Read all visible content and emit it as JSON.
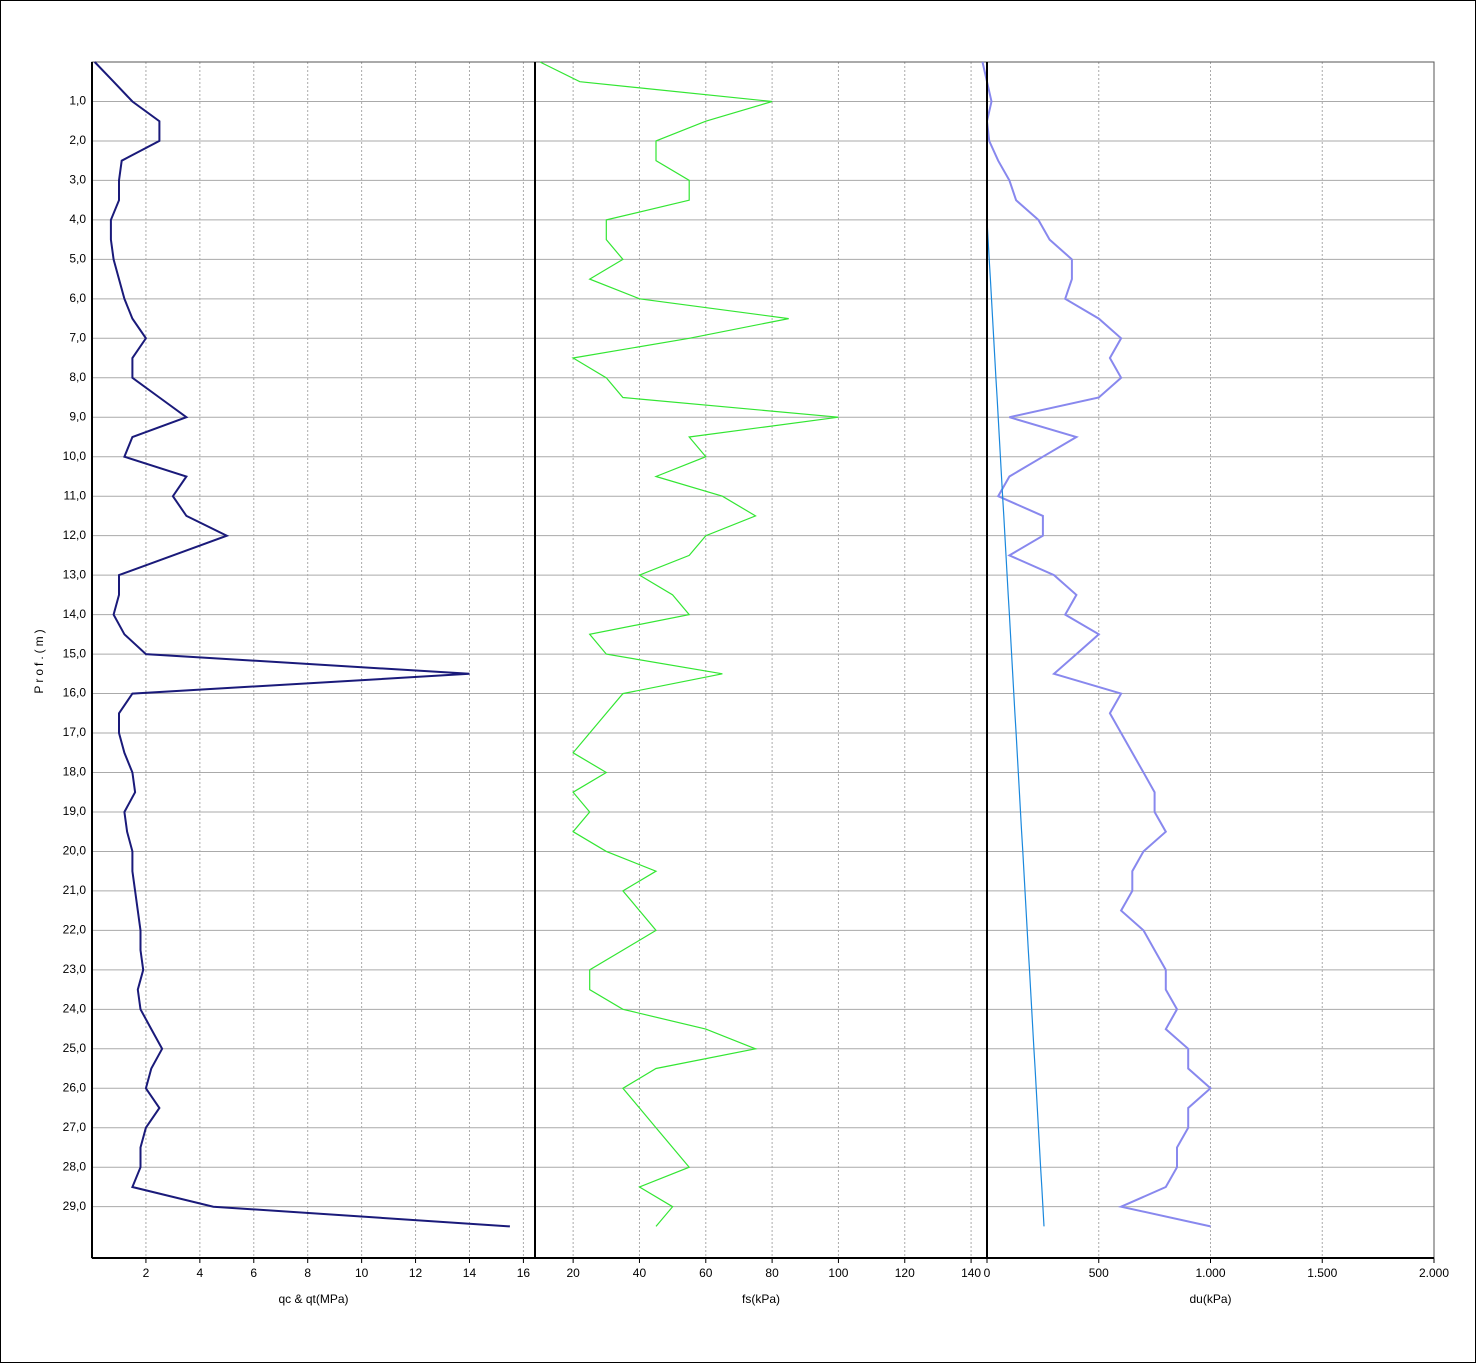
{
  "chart_data": [
    {
      "type": "line",
      "xlabel": "qc & qt(MPa)",
      "ylabel": "Prof.(m)",
      "ylim": [
        0,
        30.3
      ],
      "yticks": [
        {
          "value": 1,
          "label": "1,0"
        },
        {
          "value": 2,
          "label": "2,0"
        },
        {
          "value": 3,
          "label": "3,0"
        },
        {
          "value": 4,
          "label": "4,0"
        },
        {
          "value": 5,
          "label": "5,0"
        },
        {
          "value": 6,
          "label": "6,0"
        },
        {
          "value": 7,
          "label": "7,0"
        },
        {
          "value": 8,
          "label": "8,0"
        },
        {
          "value": 9,
          "label": "9,0"
        },
        {
          "value": 10,
          "label": "10,0"
        },
        {
          "value": 11,
          "label": "11,0"
        },
        {
          "value": 12,
          "label": "12,0"
        },
        {
          "value": 13,
          "label": "13,0"
        },
        {
          "value": 14,
          "label": "14,0"
        },
        {
          "value": 15,
          "label": "15,0"
        },
        {
          "value": 16,
          "label": "16,0"
        },
        {
          "value": 17,
          "label": "17,0"
        },
        {
          "value": 18,
          "label": "18,0"
        },
        {
          "value": 19,
          "label": "19,0"
        },
        {
          "value": 20,
          "label": "20,0"
        },
        {
          "value": 21,
          "label": "21,0"
        },
        {
          "value": 22,
          "label": "22,0"
        },
        {
          "value": 23,
          "label": "23,0"
        },
        {
          "value": 24,
          "label": "24,0"
        },
        {
          "value": 25,
          "label": "25,0"
        },
        {
          "value": 26,
          "label": "26,0"
        },
        {
          "value": 27,
          "label": "27,0"
        },
        {
          "value": 28,
          "label": "28,0"
        },
        {
          "value": 29,
          "label": "29,0"
        }
      ],
      "y": [
        0,
        0.5,
        1,
        1.5,
        2,
        2.5,
        3,
        3.5,
        4,
        4.5,
        5,
        5.5,
        6,
        6.5,
        7,
        7.5,
        8,
        8.5,
        9,
        9.5,
        10,
        10.5,
        11,
        11.5,
        12,
        12.5,
        13,
        13.5,
        14,
        14.5,
        15,
        15.5,
        16,
        16.5,
        17,
        17.5,
        18,
        18.5,
        19,
        19.5,
        20,
        20.5,
        21,
        21.5,
        22,
        22.5,
        23,
        23.5,
        24,
        24.5,
        25,
        25.5,
        26,
        26.5,
        27,
        27.5,
        28,
        28.5,
        29,
        29.5
      ],
      "xlim": [
        0,
        16.43
      ],
      "xticks": [
        2,
        4,
        6,
        8,
        10,
        12,
        14,
        16
      ],
      "grid": true,
      "series": [
        {
          "color": "#1a1a7a",
          "values": [
            0.1,
            0.8,
            1.5,
            2.5,
            2.5,
            1.1,
            1.0,
            1.0,
            0.7,
            0.7,
            0.8,
            1.0,
            1.2,
            1.5,
            2.0,
            1.5,
            1.5,
            2.5,
            3.5,
            1.5,
            1.2,
            3.5,
            3.0,
            3.5,
            5.0,
            3.0,
            1.0,
            1.0,
            0.8,
            1.2,
            2.0,
            14.0,
            1.5,
            1.0,
            1.0,
            1.2,
            1.5,
            1.6,
            1.2,
            1.3,
            1.5,
            1.5,
            1.6,
            1.7,
            1.8,
            1.8,
            1.9,
            1.7,
            1.8,
            2.2,
            2.6,
            2.2,
            2.0,
            2.5,
            2.0,
            1.8,
            1.8,
            1.5,
            4.5,
            15.5
          ]
        }
      ]
    },
    {
      "type": "line",
      "xlabel": "fs(kPa)",
      "xlim": [
        8.5,
        144.8
      ],
      "xticks": [
        20,
        40,
        60,
        80,
        100,
        120,
        140
      ],
      "grid": true,
      "series": [
        {
          "color": "#33e633",
          "values": [
            10,
            22,
            80,
            60,
            45,
            45,
            55,
            55,
            30,
            30,
            35,
            25,
            40,
            85,
            55,
            20,
            30,
            35,
            100,
            55,
            60,
            45,
            65,
            75,
            60,
            55,
            40,
            50,
            55,
            25,
            30,
            65,
            35,
            30,
            25,
            20,
            30,
            20,
            25,
            20,
            30,
            45,
            35,
            40,
            45,
            35,
            25,
            25,
            35,
            60,
            75,
            45,
            35,
            40,
            45,
            50,
            55,
            40,
            50,
            45
          ]
        }
      ]
    },
    {
      "type": "line",
      "xlabel": "du(kPa)",
      "xlim": [
        0,
        2000
      ],
      "xticks": [
        0,
        500,
        {
          "value": 1000,
          "label": "1.000"
        },
        {
          "value": 1500,
          "label": "1.500"
        },
        {
          "value": 2000,
          "label": "2.000"
        }
      ],
      "grid": true,
      "series": [
        {
          "color": "#8888ee",
          "values": [
            -20,
            0,
            20,
            0,
            10,
            50,
            100,
            130,
            230,
            280,
            380,
            380,
            350,
            500,
            600,
            550,
            600,
            500,
            100,
            400,
            250,
            100,
            50,
            250,
            250,
            100,
            300,
            400,
            350,
            500,
            400,
            300,
            600,
            550,
            600,
            650,
            700,
            750,
            750,
            800,
            700,
            650,
            650,
            600,
            700,
            750,
            800,
            800,
            850,
            800,
            900,
            900,
            1000,
            900,
            900,
            850,
            850,
            800,
            600,
            1000
          ]
        },
        {
          "color": "#1a88dd",
          "values": [
            null,
            null,
            null,
            null,
            null,
            null,
            null,
            null,
            0,
            5,
            10,
            15,
            20,
            25,
            30,
            35,
            40,
            45,
            50,
            55,
            60,
            65,
            70,
            75,
            80,
            85,
            90,
            95,
            100,
            105,
            110,
            115,
            120,
            125,
            130,
            135,
            140,
            145,
            150,
            155,
            160,
            165,
            170,
            175,
            180,
            185,
            190,
            195,
            200,
            205,
            210,
            215,
            220,
            225,
            230,
            235,
            240,
            245,
            250,
            255
          ]
        }
      ]
    }
  ]
}
